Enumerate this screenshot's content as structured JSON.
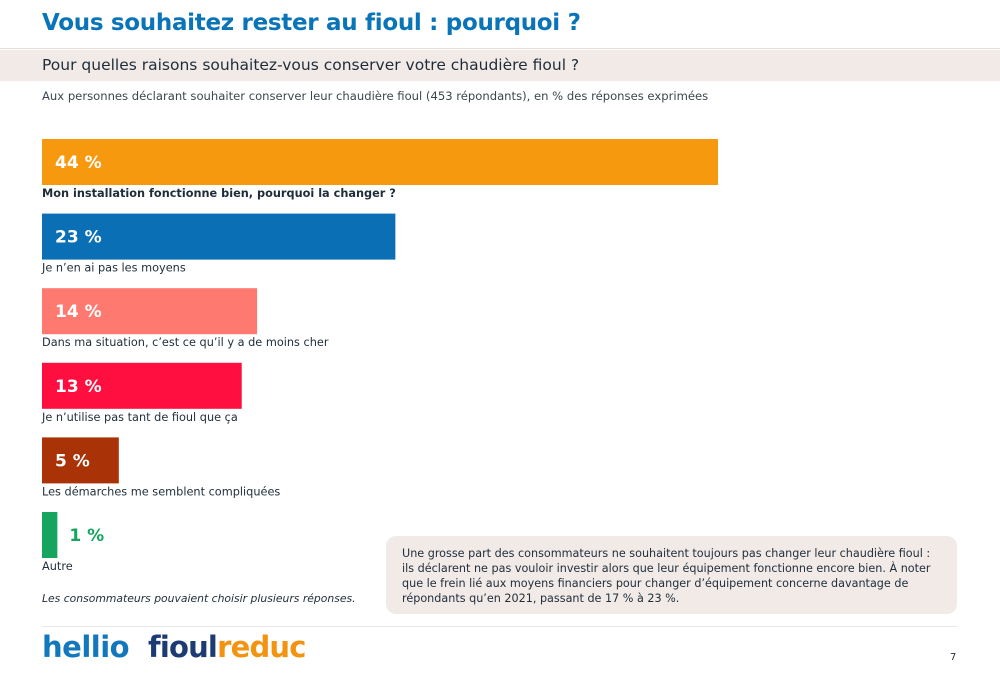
{
  "header": {
    "title": "Vous souhaitez rester au fioul : pourquoi ?",
    "question": "Pour quelles raisons souhaitez-vous conserver votre chaudière fioul ?",
    "subtitle": "Aux personnes déclarant souhaiter conserver leur chaudière fioul (453 répondants), en % des réponses exprimées"
  },
  "chart_data": {
    "type": "bar",
    "orientation": "horizontal",
    "unit": "%",
    "categories": [
      "Mon installation fonctionne bien, pourquoi la changer ?",
      "Je n’en ai pas les moyens",
      "Dans ma situation, c’est ce qu’il y a de moins cher",
      "Je n’utilise pas tant de fioul que ça",
      "Les démarches me semblent compliquées",
      "Autre"
    ],
    "values": [
      44,
      23,
      14,
      13,
      5,
      1
    ],
    "value_labels": [
      "44 %",
      "23 %",
      "14 %",
      "13 %",
      "5 %",
      "1 %"
    ],
    "colors": [
      "#f7990f",
      "#0a6fb4",
      "#fe7a70",
      "#ff0f3f",
      "#a93207",
      "#16a55e"
    ],
    "value_label_colors": [
      "#ffffff",
      "#ffffff",
      "#ffffff",
      "#ffffff",
      "#ffffff",
      "#16a55e"
    ],
    "bold_category_index": 0,
    "grid": false,
    "legend": "none"
  },
  "footnote": "Les consommateurs pouvaient choisir plusieurs réponses.",
  "comment": "Une grosse part des consommateurs ne souhaitent toujours pas changer leur chaudière fioul : ils déclarent ne pas vouloir investir alors que leur équipement fonctionne encore bien. À noter que le frein lié aux moyens financiers pour changer d’équipement concerne davantage de répondants qu’en 2021, passant de 17 % à 23 %.",
  "footer": {
    "logo_hellio": "hellio",
    "logo_fioul": "fioul",
    "logo_reduc": "reduc",
    "page_number": "7"
  }
}
